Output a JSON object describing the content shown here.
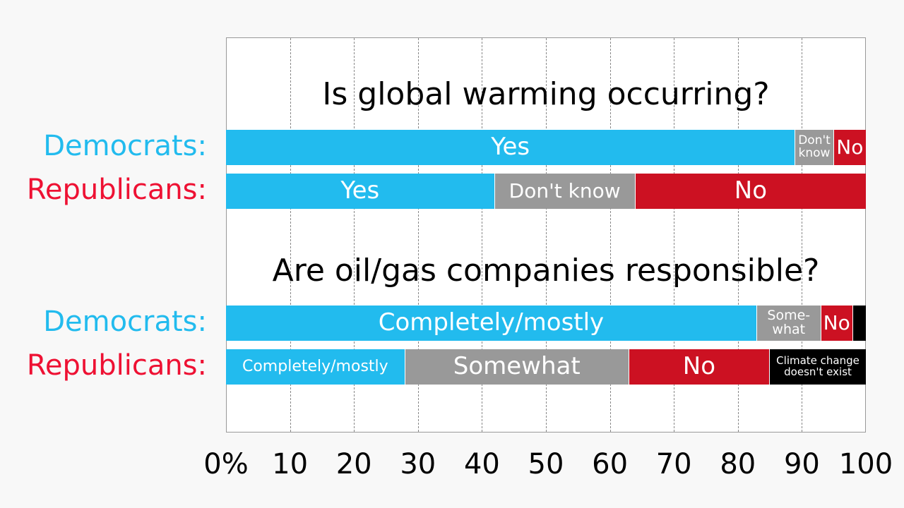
{
  "chart_data": {
    "type": "bar",
    "orientation": "horizontal-stacked",
    "xlim": [
      0,
      100
    ],
    "x_ticks": [
      "0%",
      "10",
      "20",
      "30",
      "40",
      "50",
      "60",
      "70",
      "80",
      "90",
      "100"
    ],
    "grid": true,
    "colors": {
      "blue": "#22bbee",
      "gray": "#999999",
      "red": "#cc1122",
      "black": "#000000",
      "dem_label": "#22bbee",
      "rep_label": "#ee1133"
    },
    "questions": [
      {
        "title": "Is global warming occurring?",
        "groups": [
          {
            "name": "Democrats:",
            "segments": [
              {
                "label": "Yes",
                "value": 89,
                "color": "#22bbee"
              },
              {
                "label": "Don't know",
                "value": 6,
                "color": "#999999"
              },
              {
                "label": "No",
                "value": 5,
                "color": "#cc1122"
              }
            ]
          },
          {
            "name": "Republicans:",
            "segments": [
              {
                "label": "Yes",
                "value": 42,
                "color": "#22bbee"
              },
              {
                "label": "Don't know",
                "value": 22,
                "color": "#999999"
              },
              {
                "label": "No",
                "value": 36,
                "color": "#cc1122"
              }
            ]
          }
        ]
      },
      {
        "title": "Are oil/gas companies responsible?",
        "groups": [
          {
            "name": "Democrats:",
            "segments": [
              {
                "label": "Completely/mostly",
                "value": 83,
                "color": "#22bbee"
              },
              {
                "label": "Some-what",
                "value": 10,
                "color": "#999999"
              },
              {
                "label": "No",
                "value": 5,
                "color": "#cc1122"
              },
              {
                "label": "",
                "value": 2,
                "color": "#000000"
              }
            ]
          },
          {
            "name": "Republicans:",
            "segments": [
              {
                "label": "Completely/mostly",
                "value": 28,
                "color": "#22bbee"
              },
              {
                "label": "Somewhat",
                "value": 35,
                "color": "#999999"
              },
              {
                "label": "No",
                "value": 22,
                "color": "#cc1122"
              },
              {
                "label": "Climate change doesn't exist",
                "value": 15,
                "color": "#000000"
              }
            ]
          }
        ]
      }
    ]
  }
}
